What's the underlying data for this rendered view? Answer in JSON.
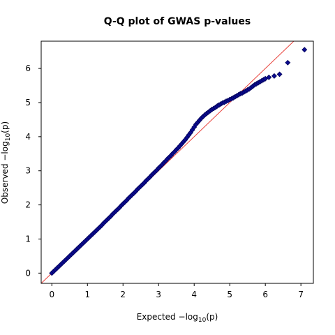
{
  "chart_data": {
    "type": "scatter",
    "title": "Q-Q plot of GWAS p-values",
    "xlabel": {
      "prefix": "Expected  ",
      "minus": "−",
      "log": "log",
      "base": "10",
      "arg": "(p)"
    },
    "ylabel": {
      "prefix": "Observed  ",
      "minus": "−",
      "log": "log",
      "base": "10",
      "arg": "(p)"
    },
    "xlim": [
      -0.3,
      7.35
    ],
    "ylim": [
      -0.3,
      6.8
    ],
    "xticks": [
      0,
      1,
      2,
      3,
      4,
      5,
      6,
      7
    ],
    "xtick_labels": [
      "0",
      "1",
      "2",
      "3",
      "4",
      "5",
      "6",
      "7"
    ],
    "yticks": [
      0,
      1,
      2,
      3,
      4,
      5,
      6
    ],
    "ytick_labels": [
      "0",
      "1",
      "2",
      "3",
      "4",
      "5",
      "6"
    ],
    "grid": false,
    "reference_line": {
      "slope": 1,
      "intercept": 0,
      "color": "#e8413a"
    },
    "marker": {
      "shape": "diamond",
      "fill": "#0b0b8f",
      "stroke": "#00005a"
    },
    "points": {
      "x": [
        0,
        0.05,
        0.1,
        0.15,
        0.2,
        0.25,
        0.3,
        0.35,
        0.4,
        0.45,
        0.5,
        0.55,
        0.6,
        0.65,
        0.7,
        0.75,
        0.8,
        0.85,
        0.9,
        0.95,
        1.0,
        1.05,
        1.1,
        1.15,
        1.2,
        1.25,
        1.3,
        1.35,
        1.4,
        1.45,
        1.5,
        1.55,
        1.6,
        1.65,
        1.7,
        1.75,
        1.8,
        1.85,
        1.9,
        1.95,
        2.0,
        2.05,
        2.1,
        2.15,
        2.2,
        2.25,
        2.3,
        2.35,
        2.4,
        2.45,
        2.5,
        2.55,
        2.6,
        2.65,
        2.7,
        2.75,
        2.8,
        2.85,
        2.9,
        2.95,
        3.0,
        3.05,
        3.1,
        3.15,
        3.2,
        3.25,
        3.3,
        3.35,
        3.4,
        3.45,
        3.5,
        3.55,
        3.6,
        3.65,
        3.7,
        3.75,
        3.8,
        3.85,
        3.9,
        3.95,
        4.0,
        4.05,
        4.1,
        4.15,
        4.2,
        4.25,
        4.3,
        4.35,
        4.4,
        4.45,
        4.5,
        4.55,
        4.6,
        4.65,
        4.7,
        4.75,
        4.8,
        4.85,
        4.9,
        4.95,
        5.0,
        5.05,
        5.1,
        5.15,
        5.2,
        5.25,
        5.3,
        5.35,
        5.4,
        5.45,
        5.5,
        5.55,
        5.6,
        5.65,
        5.7,
        5.75,
        5.8,
        5.85,
        5.9,
        5.95,
        6.0,
        6.1,
        6.25,
        6.4,
        6.63,
        7.1
      ],
      "y": [
        0,
        0.05,
        0.1,
        0.15,
        0.2,
        0.25,
        0.3,
        0.35,
        0.4,
        0.45,
        0.5,
        0.55,
        0.6,
        0.65,
        0.7,
        0.75,
        0.8,
        0.85,
        0.9,
        0.95,
        1.0,
        1.05,
        1.1,
        1.15,
        1.2,
        1.25,
        1.3,
        1.35,
        1.4,
        1.46,
        1.51,
        1.56,
        1.61,
        1.66,
        1.72,
        1.77,
        1.82,
        1.87,
        1.92,
        1.98,
        2.03,
        2.08,
        2.13,
        2.19,
        2.24,
        2.29,
        2.34,
        2.39,
        2.45,
        2.5,
        2.55,
        2.6,
        2.65,
        2.71,
        2.76,
        2.81,
        2.87,
        2.92,
        2.97,
        3.02,
        3.08,
        3.13,
        3.18,
        3.24,
        3.29,
        3.35,
        3.4,
        3.45,
        3.51,
        3.56,
        3.62,
        3.67,
        3.73,
        3.79,
        3.85,
        3.91,
        3.98,
        4.05,
        4.12,
        4.2,
        4.28,
        4.36,
        4.42,
        4.48,
        4.54,
        4.59,
        4.64,
        4.68,
        4.72,
        4.76,
        4.8,
        4.83,
        4.86,
        4.9,
        4.93,
        4.96,
        4.99,
        5.01,
        5.04,
        5.06,
        5.09,
        5.11,
        5.14,
        5.17,
        5.2,
        5.23,
        5.26,
        5.28,
        5.31,
        5.34,
        5.37,
        5.4,
        5.44,
        5.48,
        5.52,
        5.55,
        5.58,
        5.61,
        5.64,
        5.67,
        5.7,
        5.74,
        5.78,
        5.83,
        6.17,
        6.55
      ]
    }
  }
}
